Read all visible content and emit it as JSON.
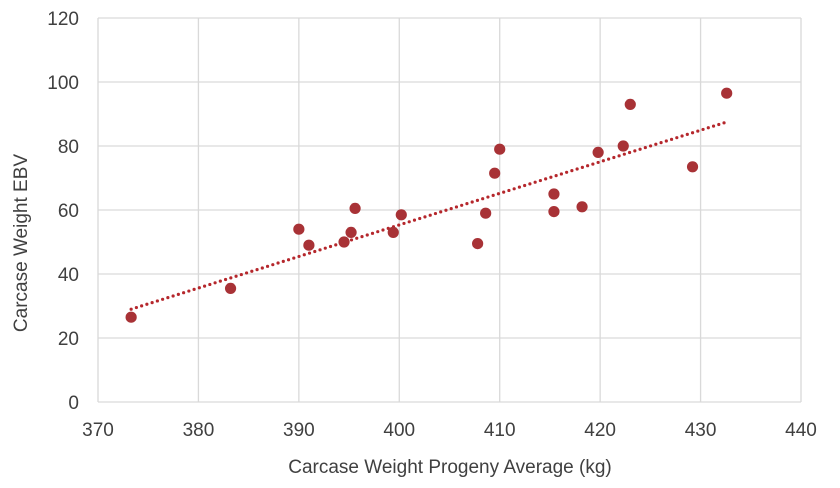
{
  "chart_data": {
    "type": "scatter",
    "title": "",
    "xlabel": "Carcase Weight  Progeny  Average  (kg)",
    "ylabel": "Carcase Weight EBV",
    "xlim": [
      370,
      440
    ],
    "ylim": [
      0,
      120
    ],
    "x_ticks": [
      370,
      380,
      390,
      400,
      410,
      420,
      430,
      440
    ],
    "y_ticks": [
      0,
      20,
      40,
      60,
      80,
      100,
      120
    ],
    "x_tick_labels": [
      "370",
      "380",
      "390",
      "400",
      "410",
      "420",
      "430",
      "440"
    ],
    "y_tick_labels": [
      "0",
      "20",
      "40",
      "60",
      "80",
      "100",
      "120"
    ],
    "grid": true,
    "legend": "none",
    "series": [
      {
        "points": [
          [
            373.3,
            26.5
          ],
          [
            383.2,
            35.5
          ],
          [
            390.0,
            54.0
          ],
          [
            391.0,
            49.0
          ],
          [
            394.5,
            50.0
          ],
          [
            395.2,
            53.0
          ],
          [
            395.6,
            60.5
          ],
          [
            399.4,
            53.0
          ],
          [
            400.2,
            58.5
          ],
          [
            407.8,
            49.5
          ],
          [
            408.6,
            59.0
          ],
          [
            409.5,
            71.5
          ],
          [
            410.0,
            79.0
          ],
          [
            415.4,
            65.0
          ],
          [
            415.4,
            59.5
          ],
          [
            418.2,
            61.0
          ],
          [
            419.8,
            78.0
          ],
          [
            422.3,
            80.0
          ],
          [
            423.0,
            93.0
          ],
          [
            429.2,
            73.5
          ],
          [
            432.6,
            96.5
          ]
        ],
        "color": "#a83236"
      }
    ],
    "trendline": {
      "type": "linear",
      "from": [
        373.3,
        29.0
      ],
      "to": [
        432.6,
        87.5
      ],
      "color": "#b5272c",
      "style": "dotted"
    }
  }
}
